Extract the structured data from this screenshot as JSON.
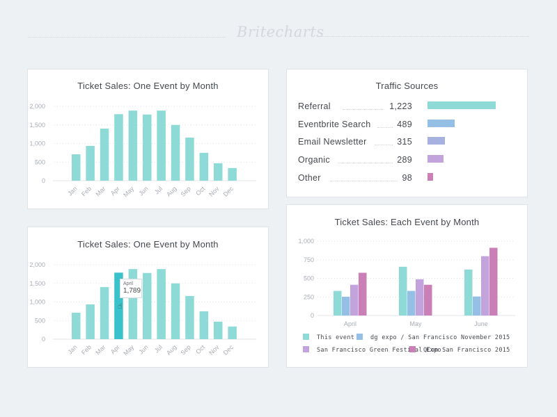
{
  "header": {
    "logo": "Britecharts"
  },
  "chart_data": [
    {
      "id": "bar-one",
      "type": "bar",
      "title": "Ticket Sales: One Event by Month",
      "xlabel": "",
      "ylabel": "",
      "categories": [
        "Jan",
        "Feb",
        "Mar",
        "Apr",
        "May",
        "Jun",
        "Jul",
        "Aug",
        "Sep",
        "Oct",
        "Nov",
        "Dec"
      ],
      "values": [
        710,
        935,
        1400,
        1789,
        1885,
        1780,
        1885,
        1500,
        1160,
        750,
        470,
        340
      ],
      "ylim": [
        0,
        2000
      ],
      "yticks": [
        0,
        500,
        1000,
        1500,
        2000
      ],
      "ytick_labels": [
        "0",
        "500",
        "1,000",
        "1,500",
        "2,000"
      ],
      "grid": true,
      "color": "#8ddad7"
    },
    {
      "id": "bar-one-hover",
      "type": "bar",
      "title": "Ticket Sales: One Event by Month",
      "xlabel": "",
      "ylabel": "",
      "categories": [
        "Jan",
        "Feb",
        "Mar",
        "Apr",
        "May",
        "Jun",
        "Jul",
        "Aug",
        "Sep",
        "Oct",
        "Nov",
        "Dec"
      ],
      "values": [
        710,
        935,
        1400,
        1789,
        1885,
        1780,
        1885,
        1500,
        1160,
        750,
        470,
        340
      ],
      "ylim": [
        0,
        2000
      ],
      "yticks": [
        0,
        500,
        1000,
        1500,
        2000
      ],
      "ytick_labels": [
        "0",
        "500",
        "1,000",
        "1,500",
        "2,000"
      ],
      "grid": true,
      "color": "#8ddad7",
      "highlight": {
        "index": 3,
        "color": "#39c2c9"
      },
      "tooltip": {
        "label": "April",
        "value": "1,789"
      }
    },
    {
      "id": "horizontal-traffic",
      "type": "bar",
      "orientation": "horizontal",
      "title": "Traffic Sources",
      "categories": [
        "Referral",
        "Eventbrite Search",
        "Email Newsletter",
        "Organic",
        "Other"
      ],
      "values": [
        1223,
        489,
        315,
        289,
        98
      ],
      "value_labels": [
        "1,223",
        "489",
        "315",
        "289",
        "98"
      ],
      "colors": [
        "#8ddad7",
        "#95bfe5",
        "#a6b1e0",
        "#c2a3dc",
        "#ca7fb6"
      ]
    },
    {
      "id": "grouped-events",
      "type": "bar",
      "mode": "grouped",
      "title": "Ticket Sales: Each Event by Month",
      "categories": [
        "April",
        "May",
        "June"
      ],
      "series": [
        {
          "name": "This event",
          "values": [
            331,
            656,
            619
          ],
          "color": "#8ddad7"
        },
        {
          "name": "dg expo / San Francisco November 2015",
          "values": [
            253,
            331,
            256
          ],
          "color": "#95bfe5"
        },
        {
          "name": "San Francisco Green Festival Expo",
          "values": [
            414,
            488,
            798
          ],
          "color": "#c2a3dc"
        },
        {
          "name": "QCon San Francisco 2015",
          "values": [
            575,
            414,
            911
          ],
          "color": "#ca7fb6"
        }
      ],
      "ylim": [
        0,
        1000
      ],
      "yticks": [
        0,
        250,
        500,
        750,
        1000
      ],
      "ytick_labels": [
        "0",
        "250",
        "500",
        "750",
        "1,000"
      ],
      "grid": true,
      "legend": "bottom"
    }
  ]
}
